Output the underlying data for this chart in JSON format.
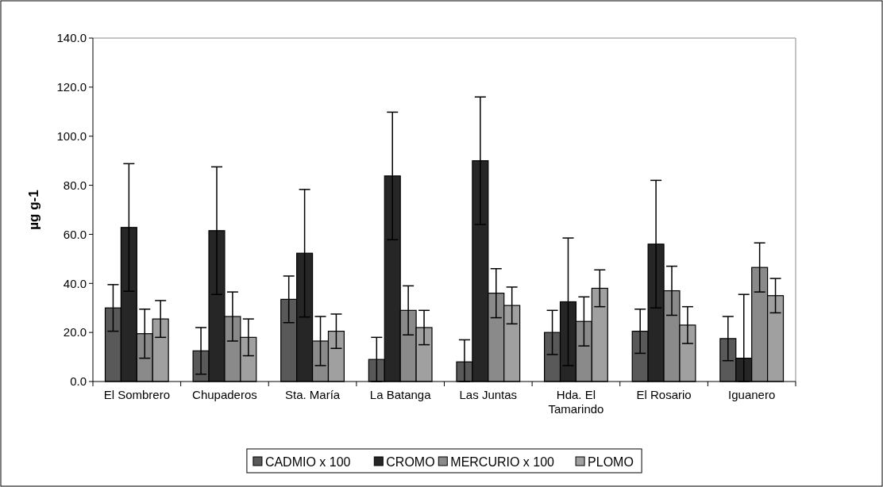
{
  "chart_data": {
    "type": "bar",
    "ylabel": "µg g-1",
    "categories": [
      "El Sombrero",
      "Chupaderos",
      "Sta. María",
      "La Batanga",
      "Las Juntas",
      "Hda. El Tamarindo",
      "El Rosario",
      "Iguanero"
    ],
    "series": [
      {
        "name": "CADMIO x 100",
        "color": "#595959",
        "values": [
          30,
          12.5,
          33.5,
          9,
          8,
          20,
          20.5,
          17.5
        ],
        "errors": [
          9.5,
          9.5,
          9.5,
          9,
          [
            0,
            17
          ],
          9,
          9,
          9
        ]
      },
      {
        "name": "CROMO",
        "color": "#262626",
        "values": [
          62.8,
          61.5,
          52.3,
          83.8,
          90,
          32.5,
          56,
          9.5
        ],
        "errors": [
          26,
          26,
          26,
          26,
          26,
          26,
          26,
          [
            0,
            35.5
          ]
        ]
      },
      {
        "name": "MERCURIO x 100",
        "color": "#8a8a8a",
        "values": [
          19.5,
          26.5,
          16.5,
          29,
          36,
          24.5,
          37,
          46.5
        ],
        "errors": [
          10,
          10,
          10,
          10,
          10,
          10,
          10,
          10
        ]
      },
      {
        "name": "PLOMO",
        "color": "#a0a0a0",
        "values": [
          25.5,
          18,
          20.5,
          22,
          31,
          38,
          23,
          35
        ],
        "errors": [
          7.5,
          7.5,
          7,
          7,
          7.5,
          7.5,
          7.5,
          7
        ]
      }
    ],
    "ylim": [
      0,
      140
    ],
    "yticks": [
      {
        "value": 0,
        "label": "0.0"
      },
      {
        "value": 20,
        "label": "20.0"
      },
      {
        "value": 40,
        "label": "40.0"
      },
      {
        "value": 60,
        "label": "60.0"
      },
      {
        "value": 80,
        "label": "80.0"
      },
      {
        "value": 100,
        "label": "100.0"
      },
      {
        "value": 120,
        "label": "120.0"
      },
      {
        "value": 140,
        "label": "140.0"
      }
    ],
    "grid": false,
    "legend": "bottom"
  }
}
